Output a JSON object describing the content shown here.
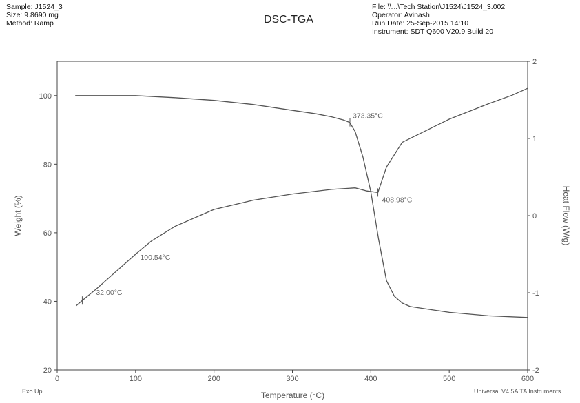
{
  "header": {
    "sample": "Sample: J1524_3",
    "size": "Size:  9.8690 mg",
    "method": "Method: Ramp",
    "file": "File: \\\\...\\Tech Station\\J1524\\J1524_3.002",
    "operator": "Operator: Avinash",
    "run_date": "Run Date: 25-Sep-2015 14:10",
    "instrument": "Instrument: SDT Q600 V20.9 Build 20"
  },
  "footer": {
    "exo_up": "Exo Up",
    "software": "Universal V4.5A TA Instruments"
  },
  "chart_data": {
    "type": "line",
    "title": "DSC-TGA",
    "xlabel": "Temperature (°C)",
    "ylabel": "Weight (%)",
    "y2label": "Heat Flow (W/g)",
    "xlim": [
      0,
      600
    ],
    "ylim": [
      20,
      110
    ],
    "y2lim": [
      -2,
      2
    ],
    "xticks": [
      0,
      100,
      200,
      300,
      400,
      500,
      600
    ],
    "yticks": [
      20,
      40,
      60,
      80,
      100
    ],
    "y2ticks": [
      -2,
      -1,
      0,
      1,
      2
    ],
    "grid": false,
    "series": [
      {
        "axis": "left",
        "x": [
          23,
          50,
          100,
          150,
          200,
          250,
          300,
          330,
          350,
          365,
          373,
          380,
          390,
          400,
          410,
          420,
          430,
          440,
          450,
          500,
          550,
          600
        ],
        "y": [
          100,
          100,
          100,
          99.4,
          98.6,
          97.4,
          95.7,
          94.7,
          93.8,
          92.9,
          92.2,
          89.5,
          82,
          72,
          58,
          46,
          41.5,
          39.5,
          38.5,
          36.8,
          35.8,
          35.3
        ]
      },
      {
        "axis": "right",
        "x": [
          24,
          32,
          50,
          70,
          100,
          120,
          150,
          200,
          250,
          300,
          350,
          380,
          395,
          408.98,
          420,
          440,
          470,
          500,
          550,
          580,
          600
        ],
        "y": [
          -1.17,
          -1.1,
          -0.95,
          -0.77,
          -0.5,
          -0.33,
          -0.14,
          0.08,
          0.2,
          0.28,
          0.34,
          0.36,
          0.32,
          0.3,
          0.63,
          0.95,
          1.1,
          1.25,
          1.45,
          1.56,
          1.65
        ]
      }
    ],
    "annotations": [
      {
        "label": "373.35°C",
        "x": 373.35,
        "y": 92.2,
        "axis": "left"
      },
      {
        "label": "408.98°C",
        "x": 408.98,
        "y": 0.3,
        "axis": "right"
      },
      {
        "label": "100.54°C",
        "x": 100.54,
        "y": -0.5,
        "axis": "right"
      },
      {
        "label": "32.00°C",
        "x": 32.0,
        "y": -1.1,
        "axis": "right"
      }
    ]
  }
}
